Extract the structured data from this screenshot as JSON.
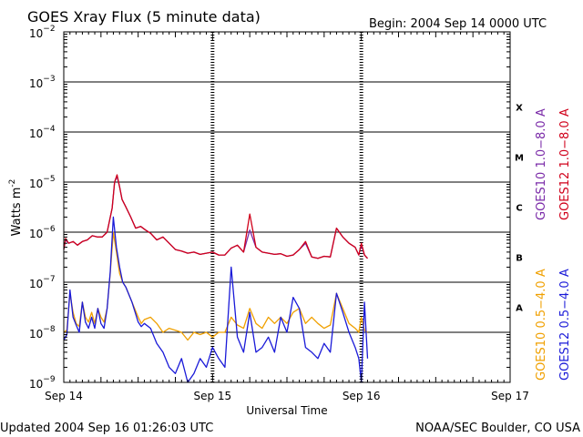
{
  "chart_data": {
    "type": "line",
    "title": "GOES Xray Flux (5 minute data)",
    "begin_label": "Begin:  2004 Sep 14 0000 UTC",
    "xlabel": "Universal Time",
    "ylabel": "Watts m",
    "ylabel_exponent": "-2",
    "y_scale": "log",
    "ylim": [
      1e-09,
      0.01
    ],
    "xlim": [
      0,
      72
    ],
    "x_unit": "hours since 2004 Sep 14 0000 UTC",
    "x_ticks": [
      {
        "x": 0,
        "label": "Sep 14"
      },
      {
        "x": 24,
        "label": "Sep 15"
      },
      {
        "x": 48,
        "label": "Sep 16"
      },
      {
        "x": 72,
        "label": "Sep 17"
      }
    ],
    "y_ticks": [
      {
        "exp": -2,
        "label_base": "10",
        "label_exp": "−2"
      },
      {
        "exp": -3,
        "label_base": "10",
        "label_exp": "−3"
      },
      {
        "exp": -4,
        "label_base": "10",
        "label_exp": "−4"
      },
      {
        "exp": -5,
        "label_base": "10",
        "label_exp": "−5"
      },
      {
        "exp": -6,
        "label_base": "10",
        "label_exp": "−6"
      },
      {
        "exp": -7,
        "label_base": "10",
        "label_exp": "−7"
      },
      {
        "exp": -8,
        "label_base": "10",
        "label_exp": "−8"
      },
      {
        "exp": -9,
        "label_base": "10",
        "label_exp": "−9"
      }
    ],
    "flare_classes": [
      {
        "label": "X",
        "y": 0.0001
      },
      {
        "label": "M",
        "y": 1e-05
      },
      {
        "label": "C",
        "y": 1e-06
      },
      {
        "label": "B",
        "y": 1e-07
      },
      {
        "label": "A",
        "y": 1e-08
      }
    ],
    "gridlines": [
      0.001,
      0.0001,
      1e-05,
      1e-06,
      1e-07,
      1e-08
    ],
    "day_dividers": [
      24,
      48
    ],
    "legend_position": "right, rotated",
    "series": [
      {
        "name": "GOES10 1.0−8.0 A",
        "color": "#7a2aa8",
        "x": [
          0,
          0.3,
          0.8,
          1.5,
          2.2,
          3.0,
          3.8,
          4.6,
          5.4,
          6.2,
          7.0,
          7.8,
          8.2,
          8.6,
          9.0,
          9.4,
          10.0,
          10.8,
          11.6,
          12.4,
          13.2,
          14.0,
          15.0,
          16.0,
          17.0,
          18.0,
          19.0,
          20.0,
          21.0,
          22.0,
          23.0,
          24.0,
          25.0,
          26.0,
          27.0,
          28.0,
          29.0,
          30.0,
          31.0,
          32.0,
          33.0,
          34.0,
          35.0,
          36.0,
          37.0,
          38.0,
          39.0,
          40.0,
          41.0,
          42.0,
          43.0,
          44.0,
          45.0,
          46.0,
          47.0,
          47.6,
          48.0,
          48.5,
          49.0
        ],
        "y": [
          4.5e-07,
          7e-07,
          6e-07,
          6.5e-07,
          5.5e-07,
          6.5e-07,
          7e-07,
          8.5e-07,
          8e-07,
          8e-07,
          1e-06,
          3e-06,
          1e-05,
          1.3e-05,
          8e-06,
          4.5e-06,
          3.2e-06,
          2e-06,
          1.2e-06,
          1.3e-06,
          1.1e-06,
          9.5e-07,
          7e-07,
          8e-07,
          6e-07,
          4.5e-07,
          4.2e-07,
          3.8e-07,
          4e-07,
          3.6e-07,
          3.8e-07,
          4e-07,
          3.5e-07,
          3.5e-07,
          4.8e-07,
          5.5e-07,
          4e-07,
          1.1e-06,
          5e-07,
          4e-07,
          3.8e-07,
          3.6e-07,
          3.7e-07,
          3.3e-07,
          3.5e-07,
          4.5e-07,
          6e-07,
          3.2e-07,
          3e-07,
          3.3e-07,
          3.2e-07,
          1.2e-06,
          8e-07,
          6e-07,
          5e-07,
          3.5e-07,
          5.5e-07,
          3.5e-07,
          3e-07
        ]
      },
      {
        "name": "GOES12 1.0−8.0 A",
        "color": "#d0001a",
        "x": [
          0,
          0.3,
          0.8,
          1.5,
          2.2,
          3.0,
          3.8,
          4.6,
          5.4,
          6.2,
          7.0,
          7.8,
          8.2,
          8.6,
          9.0,
          9.4,
          10.0,
          10.8,
          11.6,
          12.4,
          13.2,
          14.0,
          15.0,
          16.0,
          17.0,
          18.0,
          19.0,
          20.0,
          21.0,
          22.0,
          23.0,
          24.0,
          25.0,
          26.0,
          27.0,
          28.0,
          29.0,
          30.0,
          31.0,
          32.0,
          33.0,
          34.0,
          35.0,
          36.0,
          37.0,
          38.0,
          39.0,
          40.0,
          41.0,
          42.0,
          43.0,
          44.0,
          45.0,
          46.0,
          47.0,
          47.6,
          48.0,
          48.5,
          49.0
        ],
        "y": [
          4.5e-07,
          7.5e-07,
          6e-07,
          6.5e-07,
          5.5e-07,
          6.5e-07,
          7e-07,
          8.5e-07,
          8e-07,
          8e-07,
          1e-06,
          3e-06,
          1e-05,
          1.4e-05,
          8e-06,
          4.5e-06,
          3.2e-06,
          2e-06,
          1.2e-06,
          1.3e-06,
          1.1e-06,
          9.5e-07,
          7e-07,
          8e-07,
          6e-07,
          4.5e-07,
          4.2e-07,
          3.8e-07,
          4e-07,
          3.6e-07,
          3.8e-07,
          4e-07,
          3.5e-07,
          3.5e-07,
          4.8e-07,
          5.5e-07,
          4e-07,
          2.3e-06,
          5e-07,
          4e-07,
          3.8e-07,
          3.6e-07,
          3.7e-07,
          3.3e-07,
          3.5e-07,
          4.5e-07,
          6.5e-07,
          3.2e-07,
          3e-07,
          3.3e-07,
          3.2e-07,
          1.2e-06,
          8e-07,
          6e-07,
          5e-07,
          3.5e-07,
          6e-07,
          3.5e-07,
          3e-07
        ]
      },
      {
        "name": "GOES10 0.5−4.0 A",
        "color": "#f0a000",
        "x": [
          0,
          0.5,
          1.0,
          1.5,
          2.0,
          2.5,
          3.0,
          3.5,
          4.0,
          4.5,
          5.0,
          5.5,
          6.0,
          6.5,
          7.0,
          7.5,
          8.0,
          8.5,
          9.0,
          9.5,
          10.0,
          11.0,
          12.0,
          12.5,
          13.0,
          14.0,
          15.0,
          16.0,
          17.0,
          18.0,
          19.0,
          20.0,
          21.0,
          22.0,
          23.0,
          24.0,
          25.0,
          26.0,
          27.0,
          28.0,
          29.0,
          30.0,
          31.0,
          32.0,
          33.0,
          34.0,
          35.0,
          36.0,
          37.0,
          38.0,
          39.0,
          40.0,
          41.0,
          42.0,
          43.0,
          44.0,
          45.0,
          46.0,
          47.0,
          47.6,
          48.0,
          48.5,
          49.0
        ],
        "y": [
          1e-08,
          1.1e-08,
          6e-08,
          2.5e-08,
          1.5e-08,
          1.3e-08,
          4e-08,
          2e-08,
          1.6e-08,
          2.5e-08,
          1.5e-08,
          3e-08,
          2e-08,
          1.6e-08,
          3e-08,
          1.5e-07,
          1e-06,
          4e-07,
          1.5e-07,
          1e-07,
          8e-08,
          4e-08,
          2e-08,
          1.5e-08,
          1.8e-08,
          2e-08,
          1.5e-08,
          1e-08,
          1.2e-08,
          1.1e-08,
          1e-08,
          7e-09,
          1e-08,
          9e-09,
          1e-08,
          8e-09,
          1e-08,
          1e-08,
          2e-08,
          1.4e-08,
          1.2e-08,
          3e-08,
          1.5e-08,
          1.2e-08,
          2e-08,
          1.5e-08,
          2e-08,
          1.5e-08,
          2.5e-08,
          3e-08,
          1.5e-08,
          2e-08,
          1.5e-08,
          1.2e-08,
          1.4e-08,
          6e-08,
          3e-08,
          1.5e-08,
          1.2e-08,
          1e-08,
          2e-08,
          1.1e-08,
          1e-08
        ]
      },
      {
        "name": "GOES12 0.5−4.0 A",
        "color": "#1a1ad8",
        "x": [
          0,
          0.5,
          1.0,
          1.5,
          2.0,
          2.5,
          3.0,
          3.5,
          4.0,
          4.5,
          5.0,
          5.5,
          6.0,
          6.5,
          7.0,
          7.5,
          8.0,
          8.5,
          9.0,
          9.5,
          10.0,
          11.0,
          12.0,
          12.5,
          13.0,
          14.0,
          15.0,
          16.0,
          17.0,
          18.0,
          19.0,
          20.0,
          21.0,
          22.0,
          23.0,
          24.0,
          25.0,
          26.0,
          27.0,
          28.0,
          29.0,
          30.0,
          31.0,
          32.0,
          33.0,
          34.0,
          35.0,
          36.0,
          37.0,
          38.0,
          39.0,
          40.0,
          41.0,
          42.0,
          43.0,
          44.0,
          45.0,
          46.0,
          47.0,
          47.6,
          48.0,
          48.5,
          49.0
        ],
        "y": [
          7e-09,
          9e-09,
          7e-08,
          2e-08,
          1.4e-08,
          1e-08,
          4e-08,
          1.6e-08,
          1.2e-08,
          2e-08,
          1.2e-08,
          3e-08,
          1.5e-08,
          1.2e-08,
          3e-08,
          1.6e-07,
          2e-06,
          5e-07,
          2e-07,
          1e-07,
          8e-08,
          4e-08,
          1.6e-08,
          1.3e-08,
          1.5e-08,
          1.2e-08,
          6e-09,
          4e-09,
          2e-09,
          1.5e-09,
          3e-09,
          1e-09,
          1.5e-09,
          3e-09,
          2e-09,
          5e-09,
          3e-09,
          2e-09,
          2e-07,
          8e-09,
          4e-09,
          2.5e-08,
          4e-09,
          5e-09,
          8e-09,
          4e-09,
          2e-08,
          1e-08,
          5e-08,
          3e-08,
          5e-09,
          4e-09,
          3e-09,
          6e-09,
          4e-09,
          6e-08,
          2.5e-08,
          1e-08,
          5e-09,
          3e-09,
          1e-09,
          4e-08,
          3e-09
        ]
      }
    ]
  },
  "footer": {
    "updated": "Updated 2004 Sep 16 01:26:03 UTC",
    "source": "NOAA/SEC Boulder, CO USA"
  }
}
